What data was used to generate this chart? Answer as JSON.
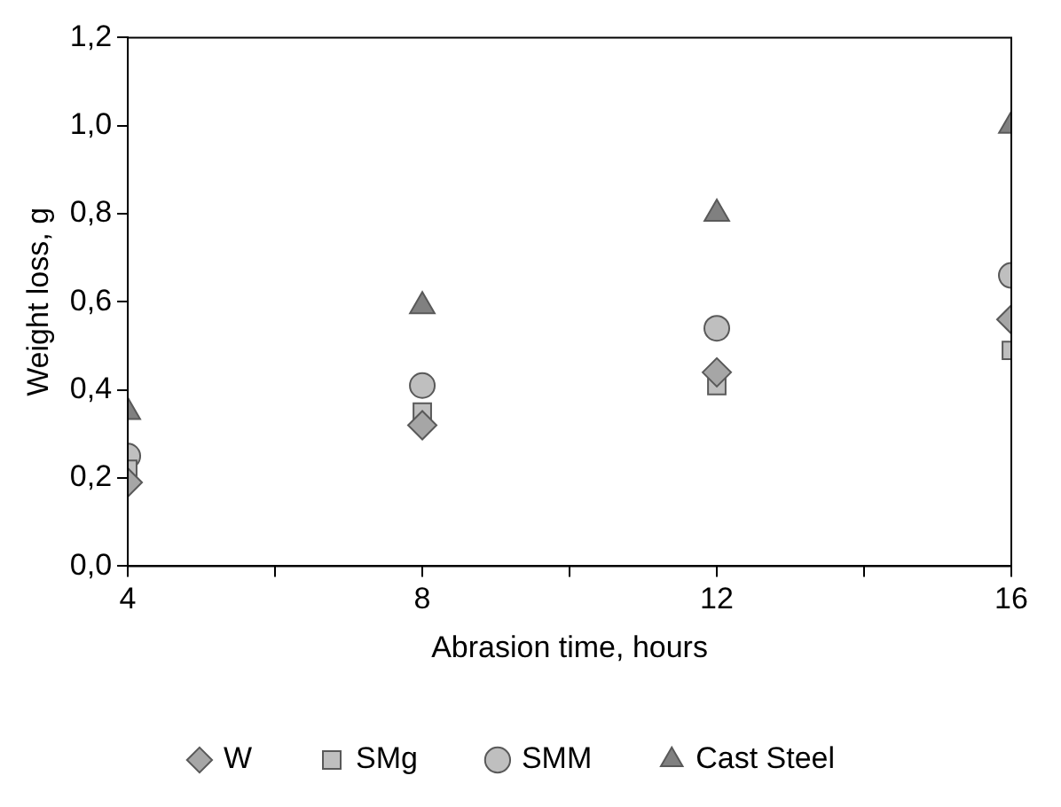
{
  "chart_data": {
    "type": "scatter",
    "xlabel": "Abrasion time, hours",
    "ylabel": "Weight loss, g",
    "x": [
      4,
      8,
      12,
      16
    ],
    "series": [
      {
        "name": "W",
        "color": "#a6a6a6",
        "marker": "diamond",
        "values": [
          0.19,
          0.32,
          0.44,
          0.56
        ]
      },
      {
        "name": "SMg",
        "color": "#bfbfbf",
        "marker": "square",
        "values": [
          0.22,
          0.35,
          0.41,
          0.49
        ]
      },
      {
        "name": "SMM",
        "color": "#bfbfbf",
        "marker": "circle",
        "values": [
          0.25,
          0.41,
          0.54,
          0.66
        ]
      },
      {
        "name": "Cast Steel",
        "color": "#808080",
        "marker": "triangle",
        "values": [
          0.35,
          0.59,
          0.8,
          1.0
        ]
      }
    ],
    "xlim": [
      4,
      16
    ],
    "ylim": [
      0,
      1.2
    ],
    "xticks": [
      4,
      {
        "value": 6,
        "label": null
      },
      8,
      {
        "value": 10,
        "label": null
      },
      12,
      {
        "value": 14,
        "label": null
      },
      16
    ],
    "yticks": [
      {
        "value": 0,
        "label": "0,0"
      },
      {
        "value": 0.2,
        "label": "0,2"
      },
      {
        "value": 0.4,
        "label": "0,4"
      },
      {
        "value": 0.6,
        "label": "0,6"
      },
      {
        "value": 0.8,
        "label": "0,8"
      },
      {
        "value": 1,
        "label": "1,0"
      },
      {
        "value": 1.2,
        "label": "1,2"
      }
    ],
    "grid": false,
    "legend": "bottom"
  }
}
